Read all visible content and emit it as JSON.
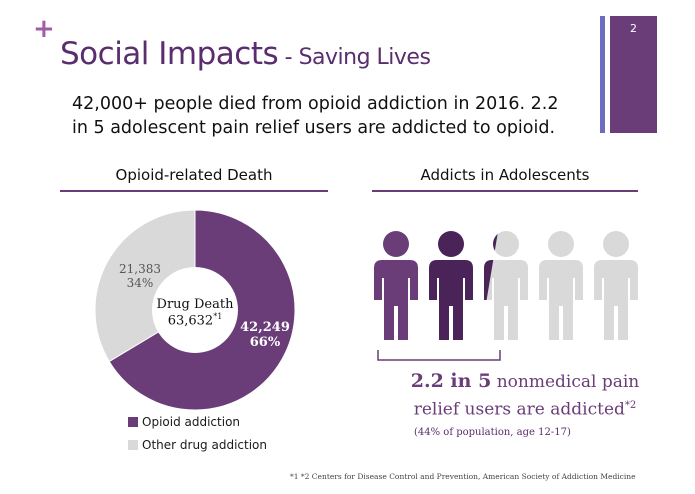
{
  "slide": {
    "plus": "+",
    "title_main": "Social Impacts",
    "title_sub": " - Saving Lives",
    "number": "2",
    "headline_1": "42,000+ people died from opioid addiction in 2016. 2.2",
    "headline_2": "in 5 adolescent pain relief users are addicted to opioid.",
    "colors": {
      "purple": "#6a3d78",
      "dark_purple": "#4a2459",
      "gray": "#d9d9d9",
      "accent": "#a05ca8",
      "blue_bar": "#6e6bbf"
    }
  },
  "left_section": {
    "title": "Opioid-related Death",
    "center_label_1": "Drug Death",
    "center_label_2": "63,632",
    "center_sup": "*1",
    "legend": [
      {
        "label": "Opioid addiction",
        "color": "#6a3d78"
      },
      {
        "label": "Other drug addiction",
        "color": "#d9d9d9"
      }
    ]
  },
  "chart_data": {
    "type": "pie",
    "donut": true,
    "slices": [
      {
        "name": "Opioid addiction",
        "value": 42249,
        "percent": 66,
        "value_label": "42,249",
        "percent_label": "66%",
        "color": "#6a3d78"
      },
      {
        "name": "Other drug addiction",
        "value": 21383,
        "percent": 34,
        "value_label": "21,383",
        "percent_label": "34%",
        "color": "#d9d9d9"
      }
    ],
    "total": 63632
  },
  "right_section": {
    "title": "Addicts in Adolescents",
    "people": {
      "total": 5,
      "addicted": 2.2
    },
    "stat_bold": "2.2 in 5",
    "stat_rest_1": " nonmedical pain",
    "stat_line_2": "relief users are addicted",
    "stat_sup": "*2",
    "note": "(44% of population, age 12-17)"
  },
  "footnote": "*1 *2  Centers for Disease Control and Prevention, American Society of Addiction Medicine"
}
